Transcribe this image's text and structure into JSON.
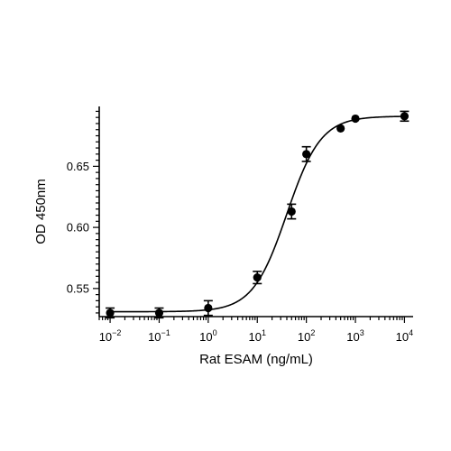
{
  "chart_data": {
    "type": "scatter",
    "xlabel": "Rat ESAM (ng/mL)",
    "ylabel": "OD 450nm",
    "xscale": "log",
    "xlim": [
      0.006,
      15000
    ],
    "ylim": [
      0.527,
      0.699
    ],
    "x_ticks": [
      {
        "base": "10",
        "exp": "-2",
        "value": 0.01
      },
      {
        "base": "10",
        "exp": "-1",
        "value": 0.1
      },
      {
        "base": "10",
        "exp": "0",
        "value": 1
      },
      {
        "base": "10",
        "exp": "1",
        "value": 10
      },
      {
        "base": "10",
        "exp": "2",
        "value": 100
      },
      {
        "base": "10",
        "exp": "3",
        "value": 1000
      },
      {
        "base": "10",
        "exp": "4",
        "value": 10000
      }
    ],
    "y_ticks": [
      {
        "label": "0.55",
        "value": 0.55
      },
      {
        "label": "0.60",
        "value": 0.6
      },
      {
        "label": "0.65",
        "value": 0.65
      }
    ],
    "grid": false,
    "legend": "none",
    "series": [
      {
        "x": [
          0.01,
          0.1,
          1,
          10,
          50,
          100,
          500,
          1000,
          10000
        ],
        "y": [
          0.53,
          0.53,
          0.534,
          0.559,
          0.613,
          0.66,
          0.681,
          0.689,
          0.691
        ],
        "error": [
          0.004,
          0.004,
          0.006,
          0.005,
          0.006,
          0.006,
          0.0,
          0.0,
          0.004
        ]
      }
    ],
    "fit": {
      "model": "4PL",
      "bottom": 0.531,
      "top": 0.691,
      "ec50": 40,
      "hill": 1.25
    },
    "colors": {
      "marks": "#000000",
      "background": "#ffffff"
    }
  }
}
